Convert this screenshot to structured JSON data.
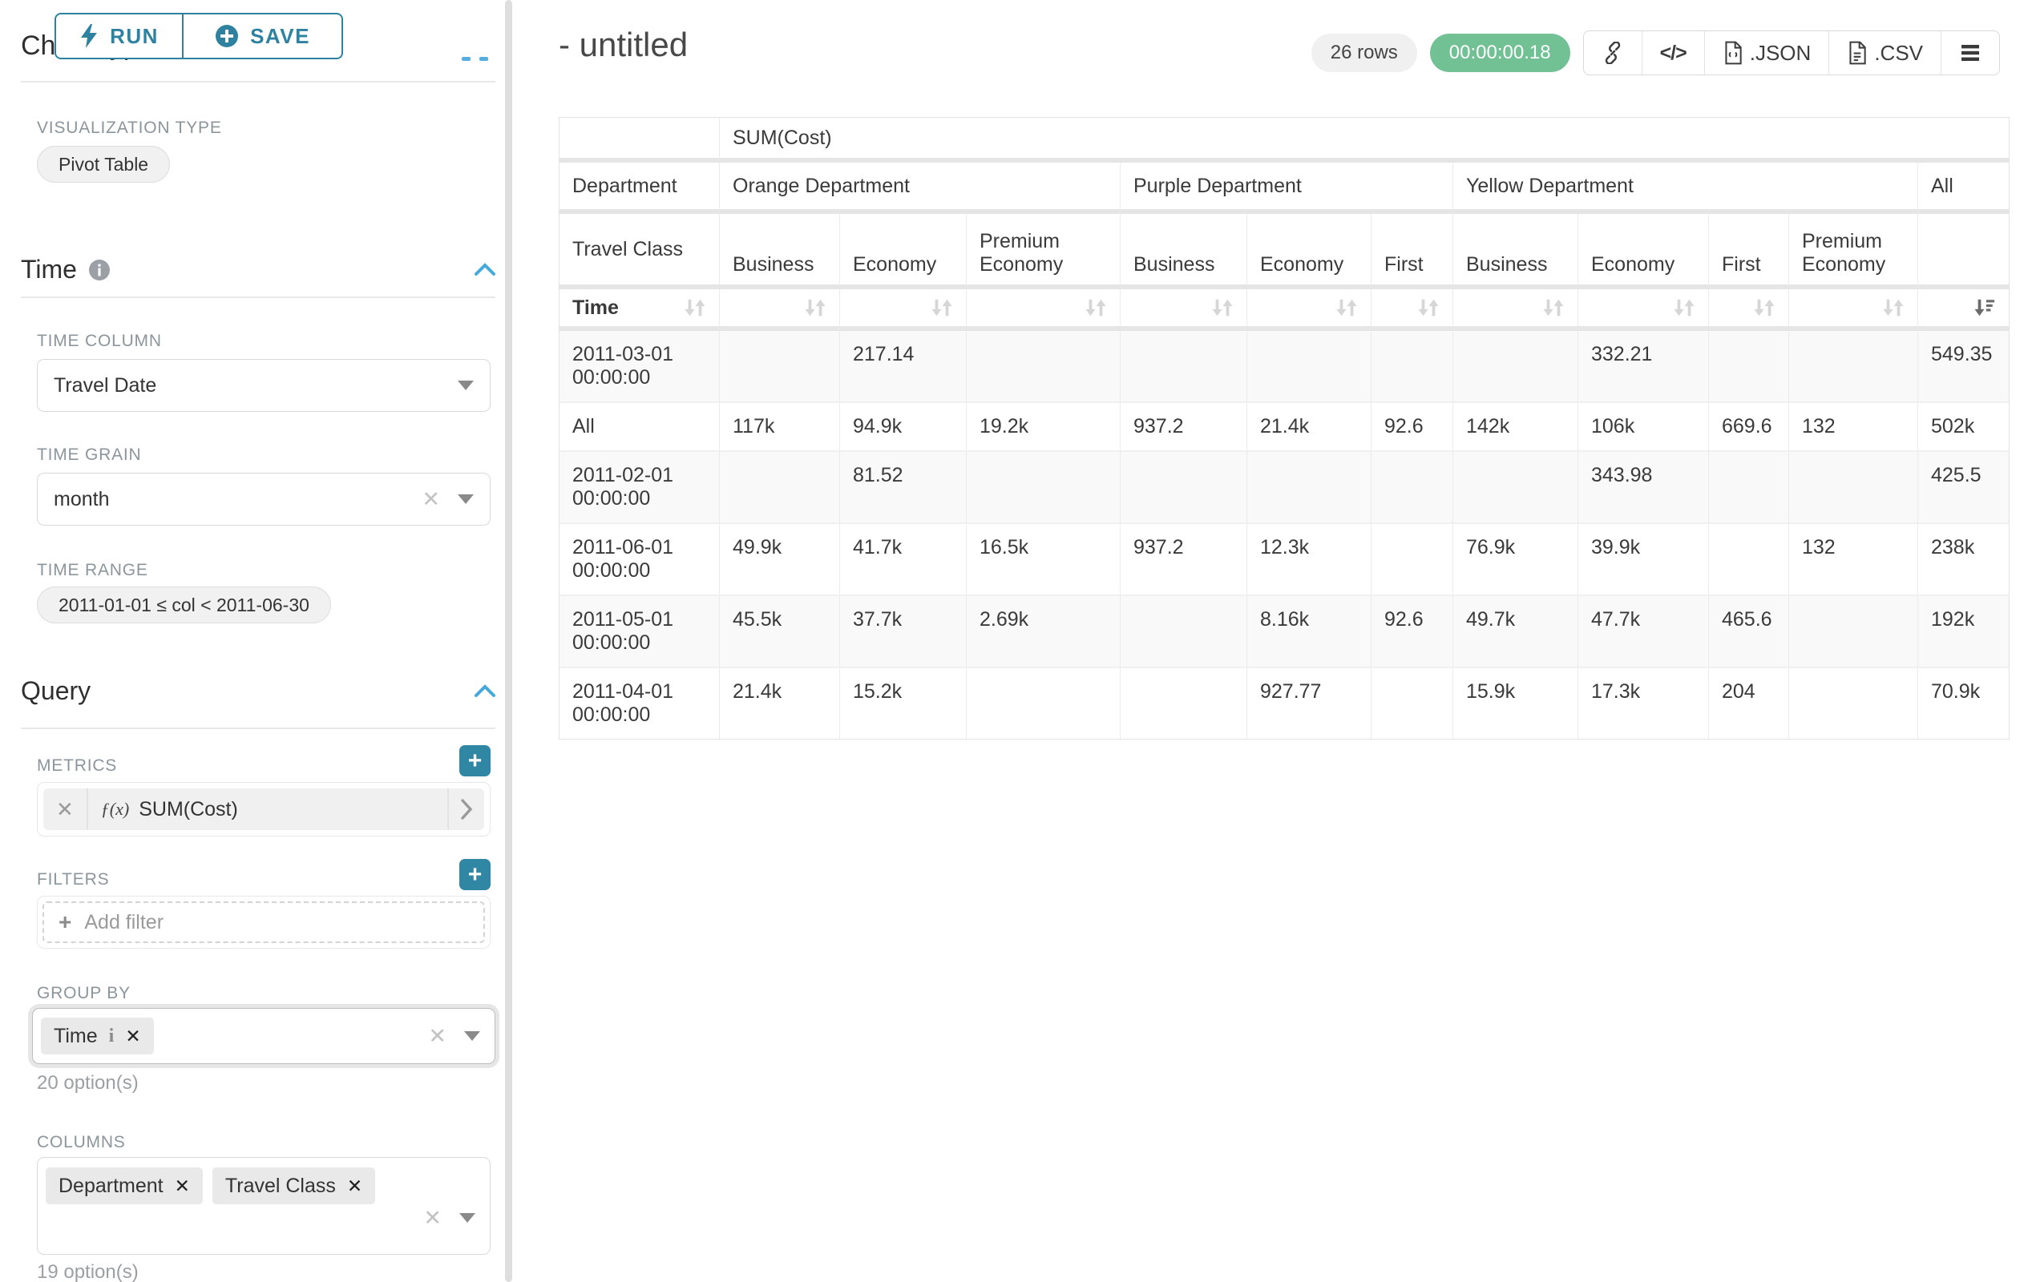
{
  "accent": {
    "teal": "#2e82a0",
    "teal_button": "#3087a4",
    "chevron_blue": "#45a9d9",
    "timer_green": "#71c194"
  },
  "toolbar": {
    "run_label": "RUN",
    "save_label": "SAVE"
  },
  "left_panel": {
    "chart_type_heading": "Chart Type",
    "visualization_type_label": "VISUALIZATION TYPE",
    "visualization_type_value": "Pivot Table",
    "time_section": {
      "title": "Time",
      "time_column_label": "TIME COLUMN",
      "time_column_value": "Travel Date",
      "time_grain_label": "TIME GRAIN",
      "time_grain_value": "month",
      "time_range_label": "TIME RANGE",
      "time_range_value": "2011-01-01 ≤ col < 2011-06-30"
    },
    "query_section": {
      "title": "Query",
      "metrics_label": "METRICS",
      "metric_fx": "ƒ(x)",
      "metric_value": "SUM(Cost)",
      "filters_label": "FILTERS",
      "add_filter_label": "Add filter",
      "group_by_label": "GROUP BY",
      "group_by_tags": [
        {
          "label": "Time",
          "info": true
        }
      ],
      "group_by_options": "20 option(s)",
      "columns_label": "COLUMNS",
      "columns_tags": [
        {
          "label": "Department"
        },
        {
          "label": "Travel Class"
        }
      ],
      "columns_options": "19 option(s)"
    }
  },
  "header": {
    "title": "- untitled",
    "row_count": "26 rows",
    "timer": "00:00:00.18",
    "export_json_label": ".JSON",
    "export_csv_label": ".CSV"
  },
  "chart_data": {
    "type": "table",
    "metric_header": "SUM(Cost)",
    "row_dimension_label": "Department",
    "sub_dimension_label": "Travel Class",
    "time_label": "Time",
    "groups": [
      {
        "label": "Orange Department",
        "cols": [
          "Business",
          "Economy",
          "Premium Economy"
        ]
      },
      {
        "label": "Purple Department",
        "cols": [
          "Business",
          "Economy",
          "First"
        ]
      },
      {
        "label": "Yellow Department",
        "cols": [
          "Business",
          "Economy",
          "First",
          "Premium Economy"
        ]
      },
      {
        "label": "All",
        "cols": [
          ""
        ]
      }
    ],
    "rows": [
      {
        "label": "2011-03-01 00:00:00",
        "values": [
          "",
          "217.14",
          "",
          "",
          "",
          "",
          "",
          "332.21",
          "",
          "",
          "549.35"
        ]
      },
      {
        "label": "All",
        "values": [
          "117k",
          "94.9k",
          "19.2k",
          "937.2",
          "21.4k",
          "92.6",
          "142k",
          "106k",
          "669.6",
          "132",
          "502k"
        ]
      },
      {
        "label": "2011-02-01 00:00:00",
        "values": [
          "",
          "81.52",
          "",
          "",
          "",
          "",
          "",
          "343.98",
          "",
          "",
          "425.5"
        ]
      },
      {
        "label": "2011-06-01 00:00:00",
        "values": [
          "49.9k",
          "41.7k",
          "16.5k",
          "937.2",
          "12.3k",
          "",
          "76.9k",
          "39.9k",
          "",
          "132",
          "238k"
        ]
      },
      {
        "label": "2011-05-01 00:00:00",
        "values": [
          "45.5k",
          "37.7k",
          "2.69k",
          "",
          "8.16k",
          "92.6",
          "49.7k",
          "47.7k",
          "465.6",
          "",
          "192k"
        ]
      },
      {
        "label": "2011-04-01 00:00:00",
        "values": [
          "21.4k",
          "15.2k",
          "",
          "",
          "927.77",
          "",
          "15.9k",
          "17.3k",
          "204",
          "",
          "70.9k"
        ]
      }
    ],
    "sorted_column": "All",
    "sort_direction": "desc"
  }
}
